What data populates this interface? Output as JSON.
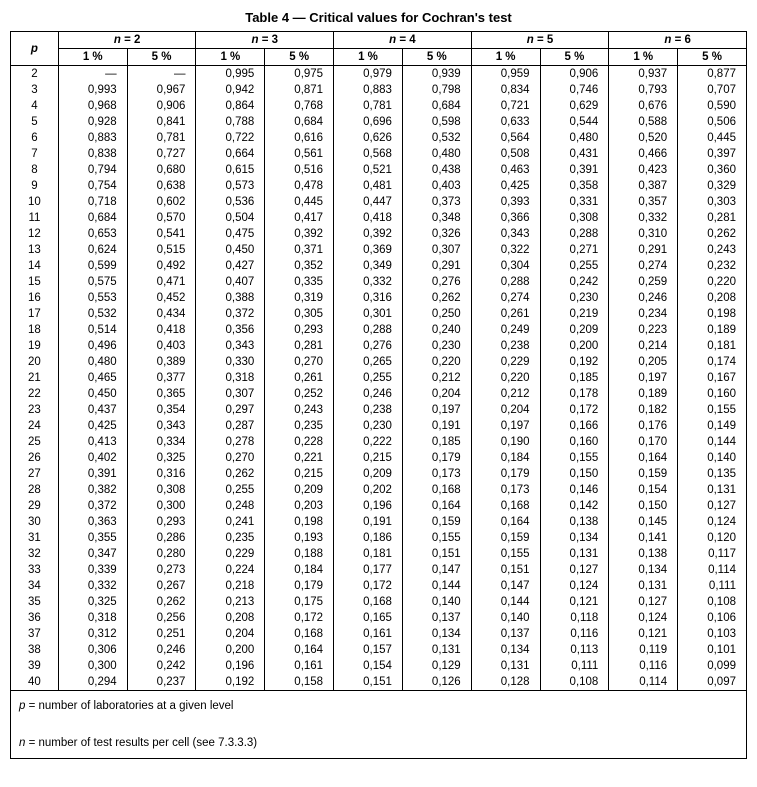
{
  "table": {
    "type": "table",
    "title": "Table 4 — Critical values for Cochran's test",
    "p_header": "p",
    "n_headers": [
      "n = 2",
      "n = 3",
      "n = 4",
      "n = 5",
      "n = 6"
    ],
    "pct_headers": [
      "1 %",
      "5 %"
    ],
    "footnote_p": "p = number of laboratories at a given level",
    "footnote_n": "n = number of test results per cell (see 7.3.3.3)",
    "border_color": "#000000",
    "background_color": "#ffffff",
    "text_color": "#000000",
    "font_size_pt": 9,
    "title_font_size_pt": 10,
    "rows": [
      {
        "p": "2",
        "v": [
          "—",
          "—",
          "0,995",
          "0,975",
          "0,979",
          "0,939",
          "0,959",
          "0,906",
          "0,937",
          "0,877"
        ]
      },
      {
        "p": "3",
        "v": [
          "0,993",
          "0,967",
          "0,942",
          "0,871",
          "0,883",
          "0,798",
          "0,834",
          "0,746",
          "0,793",
          "0,707"
        ]
      },
      {
        "p": "4",
        "v": [
          "0,968",
          "0,906",
          "0,864",
          "0,768",
          "0,781",
          "0,684",
          "0,721",
          "0,629",
          "0,676",
          "0,590"
        ]
      },
      {
        "p": "5",
        "v": [
          "0,928",
          "0,841",
          "0,788",
          "0,684",
          "0,696",
          "0,598",
          "0,633",
          "0,544",
          "0,588",
          "0,506"
        ]
      },
      {
        "p": "6",
        "v": [
          "0,883",
          "0,781",
          "0,722",
          "0,616",
          "0,626",
          "0,532",
          "0,564",
          "0,480",
          "0,520",
          "0,445"
        ]
      },
      {
        "p": "7",
        "v": [
          "0,838",
          "0,727",
          "0,664",
          "0,561",
          "0,568",
          "0,480",
          "0,508",
          "0,431",
          "0,466",
          "0,397"
        ]
      },
      {
        "p": "8",
        "v": [
          "0,794",
          "0,680",
          "0,615",
          "0,516",
          "0,521",
          "0,438",
          "0,463",
          "0,391",
          "0,423",
          "0,360"
        ]
      },
      {
        "p": "9",
        "v": [
          "0,754",
          "0,638",
          "0,573",
          "0,478",
          "0,481",
          "0,403",
          "0,425",
          "0,358",
          "0,387",
          "0,329"
        ]
      },
      {
        "p": "10",
        "v": [
          "0,718",
          "0,602",
          "0,536",
          "0,445",
          "0,447",
          "0,373",
          "0,393",
          "0,331",
          "0,357",
          "0,303"
        ]
      },
      {
        "p": "11",
        "v": [
          "0,684",
          "0,570",
          "0,504",
          "0,417",
          "0,418",
          "0,348",
          "0,366",
          "0,308",
          "0,332",
          "0,281"
        ]
      },
      {
        "p": "12",
        "v": [
          "0,653",
          "0,541",
          "0,475",
          "0,392",
          "0,392",
          "0,326",
          "0,343",
          "0,288",
          "0,310",
          "0,262"
        ]
      },
      {
        "p": "13",
        "v": [
          "0,624",
          "0,515",
          "0,450",
          "0,371",
          "0,369",
          "0,307",
          "0,322",
          "0,271",
          "0,291",
          "0,243"
        ]
      },
      {
        "p": "14",
        "v": [
          "0,599",
          "0,492",
          "0,427",
          "0,352",
          "0,349",
          "0,291",
          "0,304",
          "0,255",
          "0,274",
          "0,232"
        ]
      },
      {
        "p": "15",
        "v": [
          "0,575",
          "0,471",
          "0,407",
          "0,335",
          "0,332",
          "0,276",
          "0,288",
          "0,242",
          "0,259",
          "0,220"
        ]
      },
      {
        "p": "16",
        "v": [
          "0,553",
          "0,452",
          "0,388",
          "0,319",
          "0,316",
          "0,262",
          "0,274",
          "0,230",
          "0,246",
          "0,208"
        ]
      },
      {
        "p": "17",
        "v": [
          "0,532",
          "0,434",
          "0,372",
          "0,305",
          "0,301",
          "0,250",
          "0,261",
          "0,219",
          "0,234",
          "0,198"
        ]
      },
      {
        "p": "18",
        "v": [
          "0,514",
          "0,418",
          "0,356",
          "0,293",
          "0,288",
          "0,240",
          "0,249",
          "0,209",
          "0,223",
          "0,189"
        ]
      },
      {
        "p": "19",
        "v": [
          "0,496",
          "0,403",
          "0,343",
          "0,281",
          "0,276",
          "0,230",
          "0,238",
          "0,200",
          "0,214",
          "0,181"
        ]
      },
      {
        "p": "20",
        "v": [
          "0,480",
          "0,389",
          "0,330",
          "0,270",
          "0,265",
          "0,220",
          "0,229",
          "0,192",
          "0,205",
          "0,174"
        ]
      },
      {
        "p": "21",
        "v": [
          "0,465",
          "0,377",
          "0,318",
          "0,261",
          "0,255",
          "0,212",
          "0,220",
          "0,185",
          "0,197",
          "0,167"
        ]
      },
      {
        "p": "22",
        "v": [
          "0,450",
          "0,365",
          "0,307",
          "0,252",
          "0,246",
          "0,204",
          "0,212",
          "0,178",
          "0,189",
          "0,160"
        ]
      },
      {
        "p": "23",
        "v": [
          "0,437",
          "0,354",
          "0,297",
          "0,243",
          "0,238",
          "0,197",
          "0,204",
          "0,172",
          "0,182",
          "0,155"
        ]
      },
      {
        "p": "24",
        "v": [
          "0,425",
          "0,343",
          "0,287",
          "0,235",
          "0,230",
          "0,191",
          "0,197",
          "0,166",
          "0,176",
          "0,149"
        ]
      },
      {
        "p": "25",
        "v": [
          "0,413",
          "0,334",
          "0,278",
          "0,228",
          "0,222",
          "0,185",
          "0,190",
          "0,160",
          "0,170",
          "0,144"
        ]
      },
      {
        "p": "26",
        "v": [
          "0,402",
          "0,325",
          "0,270",
          "0,221",
          "0,215",
          "0,179",
          "0,184",
          "0,155",
          "0,164",
          "0,140"
        ]
      },
      {
        "p": "27",
        "v": [
          "0,391",
          "0,316",
          "0,262",
          "0,215",
          "0,209",
          "0,173",
          "0,179",
          "0,150",
          "0,159",
          "0,135"
        ]
      },
      {
        "p": "28",
        "v": [
          "0,382",
          "0,308",
          "0,255",
          "0,209",
          "0,202",
          "0,168",
          "0,173",
          "0,146",
          "0,154",
          "0,131"
        ]
      },
      {
        "p": "29",
        "v": [
          "0,372",
          "0,300",
          "0,248",
          "0,203",
          "0,196",
          "0,164",
          "0,168",
          "0,142",
          "0,150",
          "0,127"
        ]
      },
      {
        "p": "30",
        "v": [
          "0,363",
          "0,293",
          "0,241",
          "0,198",
          "0,191",
          "0,159",
          "0,164",
          "0,138",
          "0,145",
          "0,124"
        ]
      },
      {
        "p": "31",
        "v": [
          "0,355",
          "0,286",
          "0,235",
          "0,193",
          "0,186",
          "0,155",
          "0,159",
          "0,134",
          "0,141",
          "0,120"
        ]
      },
      {
        "p": "32",
        "v": [
          "0,347",
          "0,280",
          "0,229",
          "0,188",
          "0,181",
          "0,151",
          "0,155",
          "0,131",
          "0,138",
          "0,117"
        ]
      },
      {
        "p": "33",
        "v": [
          "0,339",
          "0,273",
          "0,224",
          "0,184",
          "0,177",
          "0,147",
          "0,151",
          "0,127",
          "0,134",
          "0,114"
        ]
      },
      {
        "p": "34",
        "v": [
          "0,332",
          "0,267",
          "0,218",
          "0,179",
          "0,172",
          "0,144",
          "0,147",
          "0,124",
          "0,131",
          "0,111"
        ]
      },
      {
        "p": "35",
        "v": [
          "0,325",
          "0,262",
          "0,213",
          "0,175",
          "0,168",
          "0,140",
          "0,144",
          "0,121",
          "0,127",
          "0,108"
        ]
      },
      {
        "p": "36",
        "v": [
          "0,318",
          "0,256",
          "0,208",
          "0,172",
          "0,165",
          "0,137",
          "0,140",
          "0,118",
          "0,124",
          "0,106"
        ]
      },
      {
        "p": "37",
        "v": [
          "0,312",
          "0,251",
          "0,204",
          "0,168",
          "0,161",
          "0,134",
          "0,137",
          "0,116",
          "0,121",
          "0,103"
        ]
      },
      {
        "p": "38",
        "v": [
          "0,306",
          "0,246",
          "0,200",
          "0,164",
          "0,157",
          "0,131",
          "0,134",
          "0,113",
          "0,119",
          "0,101"
        ]
      },
      {
        "p": "39",
        "v": [
          "0,300",
          "0,242",
          "0,196",
          "0,161",
          "0,154",
          "0,129",
          "0,131",
          "0,111",
          "0,116",
          "0,099"
        ]
      },
      {
        "p": "40",
        "v": [
          "0,294",
          "0,237",
          "0,192",
          "0,158",
          "0,151",
          "0,126",
          "0,128",
          "0,108",
          "0,114",
          "0,097"
        ]
      }
    ]
  }
}
